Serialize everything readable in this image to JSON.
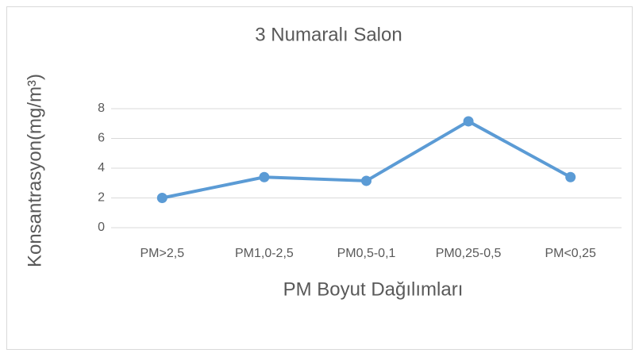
{
  "chart_data": {
    "type": "line",
    "title": "3 Numaralı Salon",
    "x_label": "PM Boyut Dağılımları",
    "y_label": "Konsantrasyon(mg/m³)",
    "categories": [
      "PM>2,5",
      "PM1,0-2,5",
      "PM0,5-0,1",
      "PM0,25-0,5",
      "PM<0,25"
    ],
    "series": [
      {
        "name": "3 Numaralı Salon",
        "color": "#5b9bd5",
        "values": [
          2.0,
          3.4,
          3.15,
          7.15,
          3.4
        ]
      }
    ],
    "ylim": [
      0,
      8
    ],
    "yticks": [
      0,
      2,
      4,
      6,
      8
    ],
    "grid": true
  }
}
